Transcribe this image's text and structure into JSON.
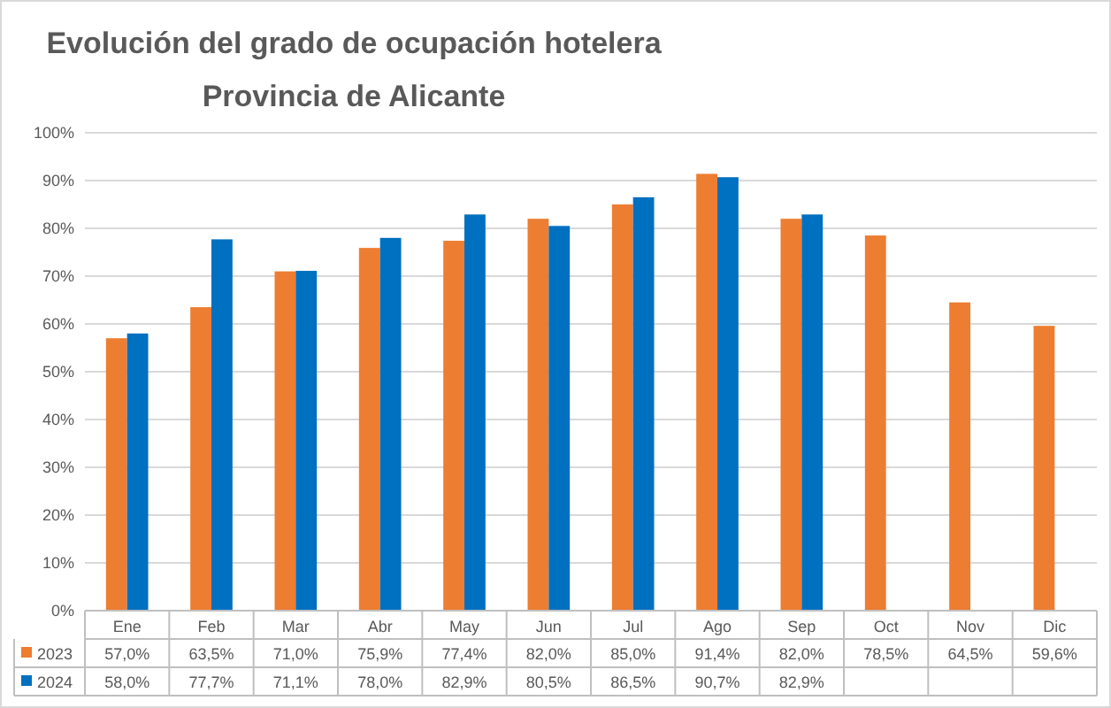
{
  "chart_data": {
    "type": "bar",
    "title": "Evolución del grado de ocupación hotelera",
    "subtitle": "Provincia de Alicante",
    "categories": [
      "Ene",
      "Feb",
      "Mar",
      "Abr",
      "May",
      "Jun",
      "Jul",
      "Ago",
      "Sep",
      "Oct",
      "Nov",
      "Dic"
    ],
    "series": [
      {
        "name": "2023",
        "color": "#ed7d31",
        "values": [
          57.0,
          63.5,
          71.0,
          75.9,
          77.4,
          82.0,
          85.0,
          91.4,
          82.0,
          78.5,
          64.5,
          59.6
        ],
        "value_labels": [
          "57,0%",
          "63,5%",
          "71,0%",
          "75,9%",
          "77,4%",
          "82,0%",
          "85,0%",
          "91,4%",
          "82,0%",
          "78,5%",
          "64,5%",
          "59,6%"
        ]
      },
      {
        "name": "2024",
        "color": "#0070c0",
        "values": [
          58.0,
          77.7,
          71.1,
          78.0,
          82.9,
          80.5,
          86.5,
          90.7,
          82.9,
          null,
          null,
          null
        ],
        "value_labels": [
          "58,0%",
          "77,7%",
          "71,1%",
          "78,0%",
          "82,9%",
          "80,5%",
          "86,5%",
          "90,7%",
          "82,9%",
          null,
          null,
          null
        ]
      }
    ],
    "ylim": [
      0,
      100
    ],
    "yticks": [
      {
        "value": 0,
        "label": "0%"
      },
      {
        "value": 10,
        "label": "10%"
      },
      {
        "value": 20,
        "label": "20%"
      },
      {
        "value": 30,
        "label": "30%"
      },
      {
        "value": 40,
        "label": "40%"
      },
      {
        "value": 50,
        "label": "50%"
      },
      {
        "value": 60,
        "label": "60%"
      },
      {
        "value": 70,
        "label": "70%"
      },
      {
        "value": 80,
        "label": "80%"
      },
      {
        "value": 90,
        "label": "90%"
      },
      {
        "value": 100,
        "label": "100%"
      }
    ],
    "grid": "y",
    "legend": "bottom"
  }
}
